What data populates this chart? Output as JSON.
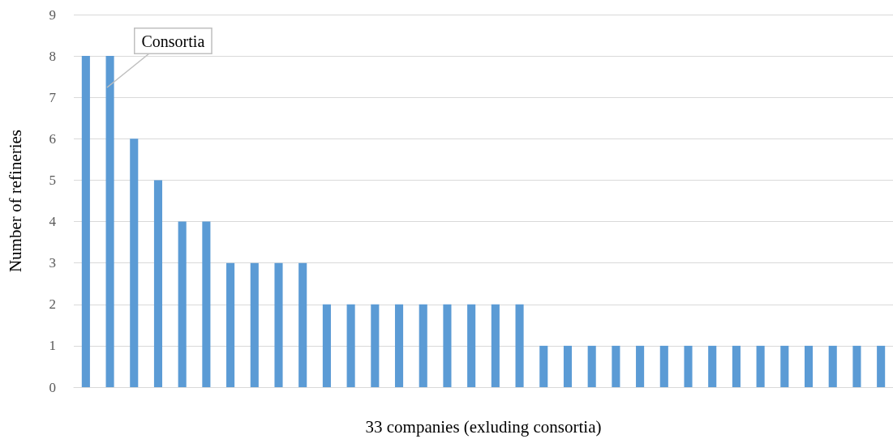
{
  "chart_data": {
    "type": "bar",
    "xlabel": "33 companies (exluding consortia)",
    "ylabel": "Number of refineries",
    "categories": [
      null,
      null,
      null,
      null,
      null,
      null,
      null,
      null,
      null,
      null,
      null,
      null,
      null,
      null,
      null,
      null,
      null,
      null,
      null,
      null,
      null,
      null,
      null,
      null,
      null,
      null,
      null,
      null,
      null,
      null,
      null,
      null,
      null,
      null
    ],
    "values": [
      8,
      8,
      6,
      5,
      4,
      4,
      3,
      3,
      3,
      3,
      2,
      2,
      2,
      2,
      2,
      2,
      2,
      2,
      2,
      1,
      1,
      1,
      1,
      1,
      1,
      1,
      1,
      1,
      1,
      1,
      1,
      1,
      1,
      1
    ],
    "color": "#5b9bd5",
    "ylim": [
      0,
      9
    ],
    "yticks": [
      0,
      1,
      2,
      3,
      4,
      5,
      6,
      7,
      8,
      9
    ],
    "grid": "y",
    "annotations": [
      "Consortia"
    ]
  }
}
